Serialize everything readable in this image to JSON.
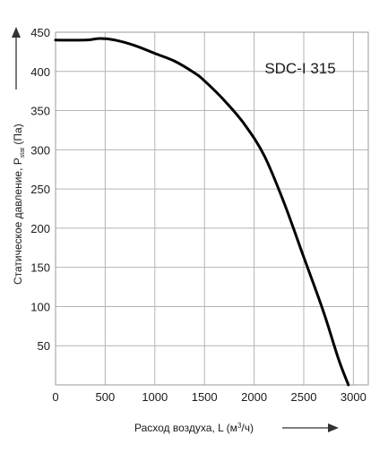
{
  "chart_data": {
    "type": "line",
    "annotation": "SDC-I 315",
    "xlabel": {
      "main": "Расход воздуха, L (м",
      "sup": "3",
      "tail": "/ч)"
    },
    "ylabel": {
      "main": "Статическое давление, P",
      "sub": "stat",
      "tail": " (Па)"
    },
    "xlim": [
      0,
      3150
    ],
    "ylim": [
      0,
      450
    ],
    "x_ticks": [
      0,
      500,
      1000,
      1500,
      2000,
      2500,
      3000
    ],
    "y_ticks": [
      50,
      100,
      150,
      200,
      250,
      300,
      350,
      400,
      450
    ],
    "grid": true,
    "series": [
      {
        "x": [
          0,
          300,
          450,
          600,
          800,
          1000,
          1200,
          1400,
          1500,
          1700,
          1900,
          2100,
          2300,
          2500,
          2700,
          2850,
          2950
        ],
        "y": [
          440,
          440,
          442,
          440,
          433,
          423,
          413,
          398,
          388,
          363,
          333,
          293,
          233,
          163,
          93,
          33,
          0
        ],
        "color": "#000000"
      }
    ]
  }
}
